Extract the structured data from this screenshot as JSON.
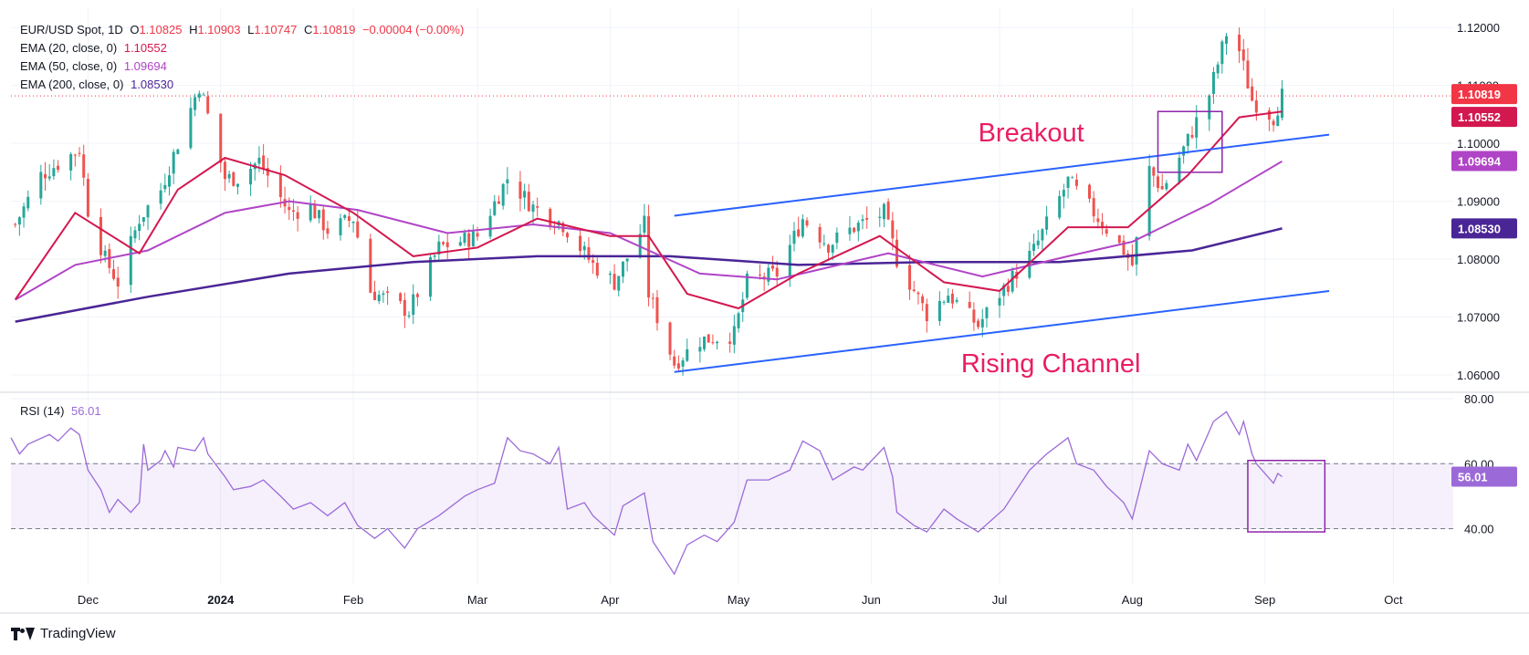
{
  "header": {
    "symbol": "EUR/USD Spot, 1D",
    "ohlc": {
      "o_label": "O",
      "o": "1.10825",
      "h_label": "H",
      "h": "1.10903",
      "l_label": "L",
      "l": "1.10747",
      "c_label": "C",
      "c": "1.10819",
      "change": "−0.00004 (−0.00%)"
    },
    "ema20": {
      "label": "EMA (20, close, 0)",
      "value": "1.10552"
    },
    "ema50": {
      "label": "EMA (50, close, 0)",
      "value": "1.09694"
    },
    "ema200": {
      "label": "EMA (200, close, 0)",
      "value": "1.08530"
    }
  },
  "price_axis": {
    "ticks": [
      "1.12000",
      "1.11000",
      "1.10000",
      "1.09000",
      "1.08000",
      "1.07000",
      "1.06000"
    ],
    "badges": {
      "last_price": "1.10819",
      "ema20": "1.10552",
      "ema50": "1.09694",
      "ema200": "1.08530"
    }
  },
  "rsi": {
    "label": "RSI (14)",
    "value": "56.01",
    "ticks": [
      "80.00",
      "60.00",
      "40.00"
    ],
    "badge": "56.01"
  },
  "time_axis": {
    "labels": [
      "Dec",
      "2024",
      "Feb",
      "Mar",
      "Apr",
      "May",
      "Jun",
      "Jul",
      "Aug",
      "Sep",
      "Oct"
    ]
  },
  "annotations": {
    "breakout": "Breakout",
    "rising_channel": "Rising Channel"
  },
  "branding": {
    "name": "TradingView"
  },
  "colors": {
    "ema20": "#d3184f",
    "ema50": "#b044c6",
    "ema200": "#4a2596",
    "channel": "#2962ff",
    "annotation": "#e91e63",
    "up": "#26a69a",
    "down": "#ef5350",
    "rsi": "#9c6ad8",
    "last_price": "#f23645",
    "box": "#8e24aa"
  },
  "chart_data": {
    "type": "candlestick",
    "title": "EUR/USD Spot, 1D",
    "timeframe": "1D",
    "y_range": [
      1.057,
      1.1235
    ],
    "last_price": 1.10819,
    "ema_latest": {
      "ema20": 1.10552,
      "ema50": 1.09694,
      "ema200": 1.0853
    },
    "close_keypoints": [
      {
        "d": "2023-11-14",
        "v": 1.086
      },
      {
        "d": "2023-11-20",
        "v": 1.0945
      },
      {
        "d": "2023-11-29",
        "v": 1.099
      },
      {
        "d": "2023-12-01",
        "v": 1.0885
      },
      {
        "d": "2023-12-05",
        "v": 1.08
      },
      {
        "d": "2023-12-08",
        "v": 1.076
      },
      {
        "d": "2023-12-13",
        "v": 1.087
      },
      {
        "d": "2023-12-18",
        "v": 1.092
      },
      {
        "d": "2023-12-27",
        "v": 1.11
      },
      {
        "d": "2023-12-28",
        "v": 1.1075
      },
      {
        "d": "2024-01-02",
        "v": 1.094
      },
      {
        "d": "2024-01-05",
        "v": 1.094
      },
      {
        "d": "2024-01-10",
        "v": 1.097
      },
      {
        "d": "2024-01-17",
        "v": 1.088
      },
      {
        "d": "2024-01-22",
        "v": 1.089
      },
      {
        "d": "2024-01-26",
        "v": 1.085
      },
      {
        "d": "2024-02-01",
        "v": 1.087
      },
      {
        "d": "2024-02-05",
        "v": 1.0745
      },
      {
        "d": "2024-02-14",
        "v": 1.071
      },
      {
        "d": "2024-02-21",
        "v": 1.082
      },
      {
        "d": "2024-03-01",
        "v": 1.084
      },
      {
        "d": "2024-03-08",
        "v": 1.094
      },
      {
        "d": "2024-03-14",
        "v": 1.089
      },
      {
        "d": "2024-03-21",
        "v": 1.086
      },
      {
        "d": "2024-03-28",
        "v": 1.079
      },
      {
        "d": "2024-04-02",
        "v": 1.076
      },
      {
        "d": "2024-04-09",
        "v": 1.086
      },
      {
        "d": "2024-04-10",
        "v": 1.074
      },
      {
        "d": "2024-04-16",
        "v": 1.062
      },
      {
        "d": "2024-04-22",
        "v": 1.066
      },
      {
        "d": "2024-04-30",
        "v": 1.067
      },
      {
        "d": "2024-05-03",
        "v": 1.076
      },
      {
        "d": "2024-05-10",
        "v": 1.0775
      },
      {
        "d": "2024-05-16",
        "v": 1.087
      },
      {
        "d": "2024-05-22",
        "v": 1.0825
      },
      {
        "d": "2024-05-28",
        "v": 1.0855
      },
      {
        "d": "2024-06-04",
        "v": 1.088
      },
      {
        "d": "2024-06-07",
        "v": 1.08
      },
      {
        "d": "2024-06-14",
        "v": 1.0705
      },
      {
        "d": "2024-06-19",
        "v": 1.074
      },
      {
        "d": "2024-06-26",
        "v": 1.0685
      },
      {
        "d": "2024-07-01",
        "v": 1.074
      },
      {
        "d": "2024-07-09",
        "v": 1.0815
      },
      {
        "d": "2024-07-17",
        "v": 1.0935
      },
      {
        "d": "2024-07-22",
        "v": 1.089
      },
      {
        "d": "2024-07-30",
        "v": 1.0815
      },
      {
        "d": "2024-08-01",
        "v": 1.079
      },
      {
        "d": "2024-08-05",
        "v": 1.0955
      },
      {
        "d": "2024-08-08",
        "v": 1.092
      },
      {
        "d": "2024-08-13",
        "v": 1.099
      },
      {
        "d": "2024-08-19",
        "v": 1.1085
      },
      {
        "d": "2024-08-23",
        "v": 1.119
      },
      {
        "d": "2024-08-26",
        "v": 1.116
      },
      {
        "d": "2024-08-29",
        "v": 1.1075
      },
      {
        "d": "2024-09-03",
        "v": 1.1045
      },
      {
        "d": "2024-09-05",
        "v": 1.1082
      }
    ],
    "ema20_keypoints": [
      {
        "d": "2023-11-14",
        "v": 1.073
      },
      {
        "d": "2023-11-28",
        "v": 1.088
      },
      {
        "d": "2023-12-13",
        "v": 1.081
      },
      {
        "d": "2023-12-22",
        "v": 1.092
      },
      {
        "d": "2024-01-02",
        "v": 1.0975
      },
      {
        "d": "2024-01-16",
        "v": 1.0945
      },
      {
        "d": "2024-02-01",
        "v": 1.088
      },
      {
        "d": "2024-02-15",
        "v": 1.0805
      },
      {
        "d": "2024-03-01",
        "v": 1.082
      },
      {
        "d": "2024-03-15",
        "v": 1.087
      },
      {
        "d": "2024-04-01",
        "v": 1.084
      },
      {
        "d": "2024-04-10",
        "v": 1.084
      },
      {
        "d": "2024-04-19",
        "v": 1.074
      },
      {
        "d": "2024-05-01",
        "v": 1.0715
      },
      {
        "d": "2024-05-15",
        "v": 1.0775
      },
      {
        "d": "2024-06-03",
        "v": 1.084
      },
      {
        "d": "2024-06-18",
        "v": 1.076
      },
      {
        "d": "2024-07-01",
        "v": 1.0745
      },
      {
        "d": "2024-07-17",
        "v": 1.0855
      },
      {
        "d": "2024-07-31",
        "v": 1.0855
      },
      {
        "d": "2024-08-14",
        "v": 1.0945
      },
      {
        "d": "2024-08-26",
        "v": 1.1045
      },
      {
        "d": "2024-09-05",
        "v": 1.1055
      }
    ],
    "ema50_keypoints": [
      {
        "d": "2023-11-14",
        "v": 1.073
      },
      {
        "d": "2023-11-28",
        "v": 1.079
      },
      {
        "d": "2023-12-15",
        "v": 1.0815
      },
      {
        "d": "2024-01-02",
        "v": 1.088
      },
      {
        "d": "2024-01-17",
        "v": 1.09
      },
      {
        "d": "2024-02-02",
        "v": 1.0885
      },
      {
        "d": "2024-02-23",
        "v": 1.0845
      },
      {
        "d": "2024-03-14",
        "v": 1.086
      },
      {
        "d": "2024-04-01",
        "v": 1.0845
      },
      {
        "d": "2024-04-22",
        "v": 1.0775
      },
      {
        "d": "2024-05-10",
        "v": 1.0765
      },
      {
        "d": "2024-06-05",
        "v": 1.081
      },
      {
        "d": "2024-06-27",
        "v": 1.077
      },
      {
        "d": "2024-07-17",
        "v": 1.0805
      },
      {
        "d": "2024-08-01",
        "v": 1.083
      },
      {
        "d": "2024-08-19",
        "v": 1.0895
      },
      {
        "d": "2024-09-05",
        "v": 1.0969
      }
    ],
    "ema200_keypoints": [
      {
        "d": "2023-11-14",
        "v": 1.0692
      },
      {
        "d": "2023-12-15",
        "v": 1.0735
      },
      {
        "d": "2024-01-17",
        "v": 1.0775
      },
      {
        "d": "2024-02-15",
        "v": 1.0795
      },
      {
        "d": "2024-03-15",
        "v": 1.0805
      },
      {
        "d": "2024-04-15",
        "v": 1.0805
      },
      {
        "d": "2024-05-15",
        "v": 1.079
      },
      {
        "d": "2024-06-14",
        "v": 1.0795
      },
      {
        "d": "2024-07-15",
        "v": 1.0795
      },
      {
        "d": "2024-08-15",
        "v": 1.0815
      },
      {
        "d": "2024-09-05",
        "v": 1.0853
      }
    ],
    "channel_upper": [
      {
        "d": "2024-04-16",
        "v": 1.0875
      },
      {
        "d": "2024-09-16",
        "v": 1.1015
      }
    ],
    "channel_lower": [
      {
        "d": "2024-04-16",
        "v": 1.0605
      },
      {
        "d": "2024-09-16",
        "v": 1.0745
      }
    ],
    "breakout_box": {
      "d_start": "2024-08-07",
      "d_end": "2024-08-22",
      "v_low": 1.095,
      "v_high": 1.1055
    },
    "rsi_range": [
      23,
      82
    ],
    "rsi_bands": [
      40,
      60
    ],
    "rsi_keypoints": [
      {
        "d": "2023-11-13",
        "v": 68
      },
      {
        "d": "2023-11-15",
        "v": 63
      },
      {
        "d": "2023-11-17",
        "v": 66
      },
      {
        "d": "2023-11-22",
        "v": 69
      },
      {
        "d": "2023-11-24",
        "v": 67
      },
      {
        "d": "2023-11-27",
        "v": 71
      },
      {
        "d": "2023-11-29",
        "v": 69
      },
      {
        "d": "2023-12-01",
        "v": 58
      },
      {
        "d": "2023-12-04",
        "v": 52
      },
      {
        "d": "2023-12-06",
        "v": 45
      },
      {
        "d": "2023-12-08",
        "v": 49
      },
      {
        "d": "2023-12-11",
        "v": 45
      },
      {
        "d": "2023-12-13",
        "v": 48
      },
      {
        "d": "2023-12-14",
        "v": 66
      },
      {
        "d": "2023-12-15",
        "v": 58
      },
      {
        "d": "2023-12-18",
        "v": 61
      },
      {
        "d": "2023-12-19",
        "v": 64
      },
      {
        "d": "2023-12-21",
        "v": 59
      },
      {
        "d": "2023-12-22",
        "v": 65
      },
      {
        "d": "2023-12-26",
        "v": 64
      },
      {
        "d": "2023-12-28",
        "v": 68
      },
      {
        "d": "2023-12-29",
        "v": 63
      },
      {
        "d": "2024-01-02",
        "v": 56
      },
      {
        "d": "2024-01-04",
        "v": 52
      },
      {
        "d": "2024-01-08",
        "v": 53
      },
      {
        "d": "2024-01-11",
        "v": 55
      },
      {
        "d": "2024-01-15",
        "v": 50
      },
      {
        "d": "2024-01-18",
        "v": 46
      },
      {
        "d": "2024-01-22",
        "v": 48
      },
      {
        "d": "2024-01-26",
        "v": 44
      },
      {
        "d": "2024-01-30",
        "v": 48
      },
      {
        "d": "2024-02-02",
        "v": 41
      },
      {
        "d": "2024-02-06",
        "v": 37
      },
      {
        "d": "2024-02-09",
        "v": 40
      },
      {
        "d": "2024-02-13",
        "v": 34
      },
      {
        "d": "2024-02-16",
        "v": 40
      },
      {
        "d": "2024-02-21",
        "v": 44
      },
      {
        "d": "2024-02-27",
        "v": 50
      },
      {
        "d": "2024-03-01",
        "v": 52
      },
      {
        "d": "2024-03-05",
        "v": 54
      },
      {
        "d": "2024-03-08",
        "v": 68
      },
      {
        "d": "2024-03-11",
        "v": 64
      },
      {
        "d": "2024-03-14",
        "v": 63
      },
      {
        "d": "2024-03-18",
        "v": 60
      },
      {
        "d": "2024-03-20",
        "v": 65
      },
      {
        "d": "2024-03-22",
        "v": 46
      },
      {
        "d": "2024-03-26",
        "v": 48
      },
      {
        "d": "2024-03-28",
        "v": 44
      },
      {
        "d": "2024-04-02",
        "v": 38
      },
      {
        "d": "2024-04-04",
        "v": 47
      },
      {
        "d": "2024-04-09",
        "v": 51
      },
      {
        "d": "2024-04-11",
        "v": 36
      },
      {
        "d": "2024-04-15",
        "v": 28
      },
      {
        "d": "2024-04-16",
        "v": 26
      },
      {
        "d": "2024-04-19",
        "v": 35
      },
      {
        "d": "2024-04-23",
        "v": 38
      },
      {
        "d": "2024-04-26",
        "v": 36
      },
      {
        "d": "2024-04-30",
        "v": 42
      },
      {
        "d": "2024-05-03",
        "v": 55
      },
      {
        "d": "2024-05-08",
        "v": 55
      },
      {
        "d": "2024-05-13",
        "v": 58
      },
      {
        "d": "2024-05-16",
        "v": 67
      },
      {
        "d": "2024-05-20",
        "v": 64
      },
      {
        "d": "2024-05-23",
        "v": 55
      },
      {
        "d": "2024-05-28",
        "v": 59
      },
      {
        "d": "2024-05-30",
        "v": 58
      },
      {
        "d": "2024-06-04",
        "v": 65
      },
      {
        "d": "2024-06-06",
        "v": 56
      },
      {
        "d": "2024-06-07",
        "v": 45
      },
      {
        "d": "2024-06-11",
        "v": 41
      },
      {
        "d": "2024-06-14",
        "v": 39
      },
      {
        "d": "2024-06-18",
        "v": 46
      },
      {
        "d": "2024-06-21",
        "v": 43
      },
      {
        "d": "2024-06-26",
        "v": 39
      },
      {
        "d": "2024-07-02",
        "v": 46
      },
      {
        "d": "2024-07-08",
        "v": 58
      },
      {
        "d": "2024-07-12",
        "v": 63
      },
      {
        "d": "2024-07-17",
        "v": 68
      },
      {
        "d": "2024-07-19",
        "v": 60
      },
      {
        "d": "2024-07-23",
        "v": 58
      },
      {
        "d": "2024-07-26",
        "v": 53
      },
      {
        "d": "2024-07-30",
        "v": 48
      },
      {
        "d": "2024-08-01",
        "v": 43
      },
      {
        "d": "2024-08-05",
        "v": 64
      },
      {
        "d": "2024-08-08",
        "v": 60
      },
      {
        "d": "2024-08-12",
        "v": 58
      },
      {
        "d": "2024-08-14",
        "v": 66
      },
      {
        "d": "2024-08-16",
        "v": 61
      },
      {
        "d": "2024-08-20",
        "v": 73
      },
      {
        "d": "2024-08-23",
        "v": 76
      },
      {
        "d": "2024-08-26",
        "v": 69
      },
      {
        "d": "2024-08-27",
        "v": 73
      },
      {
        "d": "2024-08-29",
        "v": 63
      },
      {
        "d": "2024-08-30",
        "v": 60
      },
      {
        "d": "2024-09-03",
        "v": 54
      },
      {
        "d": "2024-09-04",
        "v": 57
      },
      {
        "d": "2024-09-05",
        "v": 56
      }
    ]
  }
}
